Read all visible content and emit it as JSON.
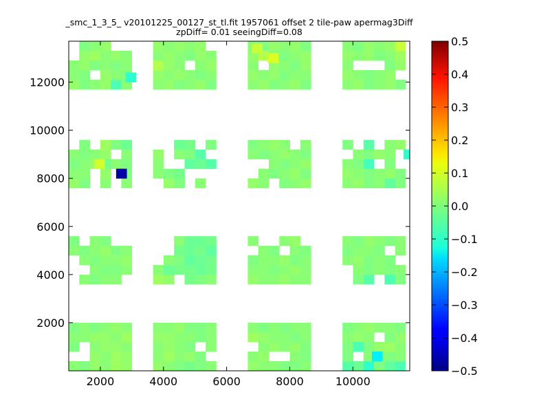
{
  "chart_data": {
    "type": "heatmap",
    "title_line1": "_smc_1_3_5_ v20101225_00127_st_tl.fit 1957061 offset 2 tile-paw apermag3Diff",
    "title_line2": "zpDiff= 0.01 seeingDiff=0.08",
    "xlabel": "",
    "ylabel": "",
    "xlim": [
      1000,
      11800
    ],
    "ylim": [
      0,
      13700
    ],
    "x_ticks": [
      "2000",
      "4000",
      "6000",
      "8000",
      "10000"
    ],
    "y_ticks": [
      "2000",
      "4000",
      "6000",
      "8000",
      "10000",
      "12000"
    ],
    "colorbar": {
      "colormap": "jet",
      "vmin": -0.5,
      "vmax": 0.5,
      "ticks": [
        "0.5",
        "0.4",
        "0.3",
        "0.2",
        "0.1",
        "0.0",
        "−0.1",
        "−0.2",
        "−0.3",
        "−0.4",
        "−0.5"
      ]
    },
    "grid": false,
    "cell_size_data": [
      333,
      400
    ],
    "column_groups_x": [
      1000,
      3670,
      6670,
      9670
    ],
    "row_groups_y": [
      0,
      3600,
      7600,
      11700
    ],
    "group_cols": 6,
    "group_rows": 6,
    "blocks": [
      {
        "col_group": 0,
        "row_group": 0,
        "rows": [
          "111111",
          "001111",
          "101111",
          "111111",
          "111111",
          "000000"
        ],
        "values": [
          [
            0.01,
            0.0,
            0.02,
            0.01,
            0.03,
            0.02
          ],
          [
            null,
            null,
            0.02,
            0.01,
            0.03,
            0.02
          ],
          [
            0.0,
            null,
            0.01,
            0.02,
            0.02,
            0.01
          ],
          [
            0.01,
            0.01,
            0.02,
            0.02,
            0.01,
            0.03
          ],
          [
            0.0,
            0.01,
            0.0,
            0.01,
            0.02,
            0.01
          ],
          [
            null,
            null,
            null,
            null,
            null,
            null
          ]
        ]
      },
      {
        "col_group": 1,
        "row_group": 0,
        "rows": [
          "111111",
          "111110",
          "111101",
          "111111",
          "111111",
          "000000"
        ],
        "values": [
          [
            0.02,
            0.01,
            0.0,
            -0.01,
            0.0,
            0.01
          ],
          [
            0.01,
            0.03,
            0.01,
            0.02,
            0.0,
            null
          ],
          [
            0.01,
            0.02,
            0.01,
            0.0,
            null,
            0.01
          ],
          [
            0.02,
            0.02,
            0.01,
            0.01,
            0.0,
            0.01
          ],
          [
            0.01,
            0.01,
            0.02,
            0.0,
            0.0,
            0.01
          ],
          [
            null,
            null,
            null,
            null,
            null,
            null
          ]
        ]
      },
      {
        "col_group": 2,
        "row_group": 0,
        "rows": [
          "111111",
          "110011",
          "011111",
          "111111",
          "111111",
          "000000"
        ],
        "values": [
          [
            0.02,
            0.01,
            0.01,
            0.0,
            0.0,
            0.01
          ],
          [
            0.01,
            0.02,
            null,
            null,
            0.01,
            0.0
          ],
          [
            null,
            0.01,
            0.02,
            0.01,
            0.02,
            0.0
          ],
          [
            0.03,
            0.02,
            0.01,
            0.01,
            0.0,
            0.01
          ],
          [
            0.01,
            0.0,
            0.01,
            0.0,
            0.01,
            0.01
          ],
          [
            null,
            null,
            null,
            null,
            null,
            null
          ]
        ]
      },
      {
        "col_group": 3,
        "row_group": 0,
        "rows": [
          "111111",
          "101111",
          "111111",
          "111011",
          "111111",
          "000000"
        ],
        "values": [
          [
            -0.04,
            -0.02,
            -0.08,
            0.0,
            -0.03,
            -0.05
          ],
          [
            0.0,
            null,
            0.01,
            0.02,
            0.0,
            0.01
          ],
          [
            0.0,
            0.01,
            0.0,
            0.02,
            0.03,
            0.01
          ],
          [
            0.01,
            0.02,
            0.01,
            null,
            0.0,
            0.02
          ],
          [
            0.0,
            0.01,
            0.02,
            0.01,
            0.01,
            0.0
          ],
          [
            null,
            null,
            null,
            null,
            null,
            null
          ]
        ]
      },
      {
        "col_group": 0,
        "row_group": 1,
        "rows": [
          "011110",
          "001111",
          "011111",
          "111111",
          "101100",
          "000000"
        ],
        "values": [
          [
            null,
            0.01,
            0.0,
            0.01,
            0.01,
            null
          ],
          [
            null,
            null,
            0.01,
            0.0,
            0.0,
            0.01
          ],
          [
            null,
            0.01,
            0.0,
            0.01,
            0.01,
            0.02
          ],
          [
            0.01,
            0.0,
            0.01,
            0.02,
            0.0,
            0.01
          ],
          [
            0.0,
            null,
            0.01,
            0.0,
            null,
            null
          ],
          [
            null,
            null,
            null,
            null,
            null,
            null
          ]
        ]
      },
      {
        "col_group": 1,
        "row_group": 1,
        "rows": [
          "110111",
          "111111",
          "011111",
          "001111",
          "001111",
          "000000"
        ],
        "values": [
          [
            0.03,
            0.02,
            null,
            -0.01,
            0.0,
            0.01
          ],
          [
            0.01,
            -0.02,
            -0.01,
            -0.01,
            -0.02,
            -0.01
          ],
          [
            null,
            0.01,
            0.0,
            -0.03,
            -0.02,
            -0.01
          ],
          [
            null,
            null,
            -0.01,
            -0.02,
            -0.01,
            -0.03
          ],
          [
            null,
            null,
            0.01,
            -0.02,
            -0.02,
            -0.01
          ],
          [
            null,
            null,
            null,
            null,
            null,
            null
          ]
        ]
      },
      {
        "col_group": 2,
        "row_group": 1,
        "rows": [
          "111111",
          "111111",
          "111111",
          "011011",
          "100110",
          "000000"
        ],
        "values": [
          [
            0.02,
            0.01,
            0.01,
            0.02,
            0.01,
            0.01
          ],
          [
            0.01,
            0.01,
            0.0,
            0.01,
            0.02,
            0.01
          ],
          [
            0.0,
            0.01,
            0.01,
            0.02,
            0.0,
            0.01
          ],
          [
            null,
            0.01,
            0.0,
            null,
            0.01,
            0.0
          ],
          [
            0.01,
            null,
            null,
            0.01,
            0.02,
            null
          ],
          [
            null,
            null,
            null,
            null,
            null,
            null
          ]
        ]
      },
      {
        "col_group": 3,
        "row_group": 1,
        "rows": [
          "011011",
          "011111",
          "111110",
          "111101",
          "111111",
          "000000"
        ],
        "values": [
          [
            null,
            0.0,
            -0.04,
            null,
            -0.05,
            0.0
          ],
          [
            null,
            0.01,
            0.0,
            0.01,
            0.0,
            0.01
          ],
          [
            0.01,
            0.02,
            0.0,
            0.01,
            0.0,
            null
          ],
          [
            0.0,
            0.01,
            0.01,
            0.0,
            null,
            0.01
          ],
          [
            0.01,
            0.0,
            0.02,
            0.01,
            0.0,
            0.01
          ],
          [
            null,
            null,
            null,
            null,
            null,
            null
          ]
        ]
      },
      {
        "col_group": 0,
        "row_group": 2,
        "rows": [
          "110101",
          "110101",
          "111111",
          "111101",
          "010111",
          "000000"
        ],
        "values": [
          [
            0.02,
            0.0,
            null,
            0.01,
            null,
            0.01
          ],
          [
            0.01,
            0.01,
            null,
            0.02,
            null,
            0.0
          ],
          [
            0.0,
            0.01,
            0.02,
            -0.01,
            0.01,
            0.0
          ],
          [
            0.01,
            0.0,
            0.01,
            0.02,
            null,
            0.01
          ],
          [
            null,
            0.0,
            null,
            0.03,
            0.0,
            -0.02
          ],
          [
            null,
            null,
            null,
            null,
            null,
            null
          ]
        ]
      },
      {
        "col_group": 1,
        "row_group": 2,
        "rows": [
          "011010",
          "111000",
          "100111",
          "101110",
          "001101",
          "000000"
        ],
        "values": [
          [
            null,
            0.02,
            0.0,
            null,
            0.01,
            null
          ],
          [
            0.01,
            0.0,
            -0.01,
            null,
            null,
            null
          ],
          [
            0.01,
            null,
            null,
            -0.03,
            -0.02,
            -0.04
          ],
          [
            0.02,
            null,
            0.01,
            0.0,
            -0.04,
            null
          ],
          [
            null,
            null,
            -0.02,
            -0.01,
            null,
            0.0
          ],
          [
            null,
            null,
            null,
            null,
            null,
            null
          ]
        ]
      },
      {
        "col_group": 2,
        "row_group": 2,
        "rows": [
          "110111",
          "011111",
          "001111",
          "111111",
          "111101",
          "000000"
        ],
        "values": [
          [
            0.02,
            0.01,
            null,
            0.0,
            0.01,
            0.02
          ],
          [
            null,
            0.01,
            0.0,
            0.01,
            0.02,
            0.0
          ],
          [
            null,
            null,
            0.01,
            0.0,
            0.01,
            0.02
          ],
          [
            0.01,
            0.0,
            0.01,
            0.02,
            0.01,
            0.0
          ],
          [
            0.0,
            0.01,
            0.02,
            0.01,
            null,
            0.01
          ],
          [
            null,
            null,
            null,
            null,
            null,
            null
          ]
        ]
      },
      {
        "col_group": 3,
        "row_group": 2,
        "rows": [
          "111111",
          "111111",
          "111010",
          "011110",
          "101011",
          "000000"
        ],
        "values": [
          [
            0.01,
            0.02,
            0.0,
            0.01,
            -0.03,
            0.0
          ],
          [
            0.02,
            0.01,
            0.0,
            0.01,
            0.02,
            0.0
          ],
          [
            0.01,
            0.0,
            -0.06,
            null,
            0.0,
            null
          ],
          [
            null,
            0.01,
            0.0,
            0.02,
            0.01,
            null
          ],
          [
            0.0,
            null,
            -0.04,
            null,
            0.01,
            0.02
          ],
          [
            null,
            null,
            null,
            null,
            null,
            null
          ]
        ]
      },
      {
        "col_group": 0,
        "row_group": 3,
        "rows": [
          "111111",
          "110111",
          "111111",
          "011111",
          "011100",
          "000000"
        ],
        "values": [
          [
            0.02,
            0.0,
            0.01,
            0.02,
            -0.05,
            0.01
          ],
          [
            0.01,
            0.0,
            null,
            0.02,
            0.01,
            0.0
          ],
          [
            0.01,
            0.02,
            0.0,
            0.01,
            0.0,
            0.01
          ],
          [
            null,
            0.02,
            0.03,
            0.01,
            0.02,
            0.01
          ],
          [
            null,
            0.0,
            0.01,
            0.02,
            null,
            null
          ],
          [
            null,
            null,
            null,
            null,
            null,
            null
          ]
        ]
      },
      {
        "col_group": 1,
        "row_group": 3,
        "rows": [
          "111111",
          "111111",
          "111011",
          "111111",
          "111110",
          "000000"
        ],
        "values": [
          [
            0.01,
            0.02,
            0.0,
            0.01,
            0.02,
            0.0
          ],
          [
            0.02,
            0.01,
            0.02,
            0.01,
            0.0,
            0.01
          ],
          [
            0.05,
            0.02,
            0.01,
            null,
            0.01,
            0.02
          ],
          [
            0.01,
            0.02,
            0.01,
            0.0,
            0.02,
            0.01
          ],
          [
            0.02,
            0.01,
            0.02,
            0.01,
            0.02,
            null
          ],
          [
            null,
            null,
            null,
            null,
            null,
            null
          ]
        ]
      },
      {
        "col_group": 2,
        "row_group": 3,
        "rows": [
          "111111",
          "111111",
          "101111",
          "111111",
          "111111",
          "000000"
        ],
        "values": [
          [
            0.01,
            0.02,
            0.0,
            0.01,
            0.02,
            0.0
          ],
          [
            0.02,
            0.01,
            0.02,
            0.0,
            0.01,
            0.01
          ],
          [
            0.01,
            null,
            0.02,
            0.01,
            0.0,
            0.02
          ],
          [
            0.02,
            0.05,
            0.01,
            0.0,
            0.01,
            0.02
          ],
          [
            0.01,
            0.0,
            0.02,
            0.01,
            0.02,
            0.0
          ],
          [
            null,
            null,
            null,
            null,
            null,
            null
          ]
        ]
      },
      {
        "col_group": 3,
        "row_group": 3,
        "rows": [
          "111111",
          "111110",
          "100011",
          "111111",
          "111111",
          "000000"
        ],
        "values": [
          [
            0.01,
            0.02,
            0.0,
            0.01,
            0.02,
            0.0
          ],
          [
            0.02,
            0.01,
            0.0,
            0.01,
            0.02,
            null
          ],
          [
            0.01,
            null,
            null,
            null,
            0.0,
            0.02
          ],
          [
            0.02,
            0.01,
            0.02,
            0.0,
            0.01,
            0.03
          ],
          [
            0.01,
            0.0,
            0.02,
            0.01,
            0.02,
            0.07
          ],
          [
            null,
            null,
            null,
            null,
            null,
            null
          ]
        ]
      }
    ],
    "extra_cells": [
      {
        "x": 2500,
        "y": 8000,
        "value": -0.46
      },
      {
        "x": 1800,
        "y": 8400,
        "value": 0.08
      },
      {
        "x": 2800,
        "y": 12000,
        "value": -0.08
      },
      {
        "x": 6800,
        "y": 13200,
        "value": 0.07
      },
      {
        "x": 7300,
        "y": 12800,
        "value": 0.09
      },
      {
        "x": 10600,
        "y": 400,
        "value": -0.14
      },
      {
        "x": 10000,
        "y": 800,
        "value": -0.05
      },
      {
        "x": 11600,
        "y": 8800,
        "value": -0.08
      }
    ]
  }
}
